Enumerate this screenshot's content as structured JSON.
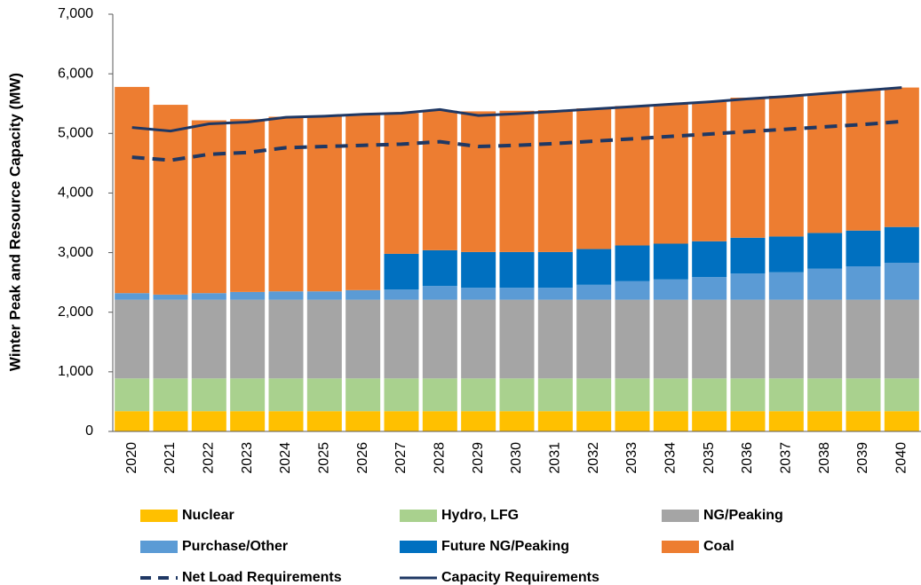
{
  "chart_data": {
    "type": "bar",
    "stacked": true,
    "ylabel": "Winter Peak and Resource Capacity (MW)",
    "categories": [
      "2020",
      "2021",
      "2022",
      "2023",
      "2024",
      "2025",
      "2026",
      "2027",
      "2028",
      "2029",
      "2030",
      "2031",
      "2032",
      "2033",
      "2034",
      "2035",
      "2036",
      "2037",
      "2038",
      "2039",
      "2040"
    ],
    "series": [
      {
        "name": "Nuclear",
        "color": "#ffc000",
        "values": [
          340,
          340,
          340,
          340,
          340,
          340,
          340,
          340,
          340,
          340,
          340,
          340,
          340,
          340,
          340,
          340,
          340,
          340,
          340,
          340,
          340
        ]
      },
      {
        "name": "Hydro, LFG",
        "color": "#a9d18e",
        "values": [
          550,
          550,
          550,
          550,
          550,
          550,
          550,
          550,
          550,
          550,
          550,
          550,
          550,
          550,
          550,
          550,
          550,
          550,
          550,
          550,
          550
        ]
      },
      {
        "name": "NG/Peaking",
        "color": "#a5a5a5",
        "values": [
          1320,
          1320,
          1320,
          1320,
          1320,
          1320,
          1320,
          1320,
          1320,
          1320,
          1320,
          1320,
          1320,
          1320,
          1320,
          1320,
          1320,
          1320,
          1320,
          1320,
          1320
        ]
      },
      {
        "name": "Purchase/Other",
        "color": "#5b9bd5",
        "values": [
          110,
          85,
          110,
          130,
          140,
          140,
          160,
          170,
          230,
          200,
          200,
          200,
          250,
          310,
          340,
          380,
          440,
          460,
          520,
          560,
          620
        ]
      },
      {
        "name": "Future NG/Peaking",
        "color": "#0070c0",
        "values": [
          0,
          0,
          0,
          0,
          0,
          0,
          0,
          600,
          600,
          600,
          600,
          600,
          600,
          600,
          600,
          600,
          600,
          600,
          600,
          600,
          600
        ]
      },
      {
        "name": "Coal",
        "color": "#ed7d31",
        "values": [
          3460,
          3185,
          2900,
          2900,
          2930,
          2940,
          2950,
          2360,
          2340,
          2360,
          2370,
          2380,
          2360,
          2340,
          2340,
          2340,
          2350,
          2360,
          2340,
          2350,
          2340
        ]
      }
    ],
    "lines": [
      {
        "name": "Net Load Requirements",
        "color": "#1f3864",
        "dashed": true,
        "values": [
          4600,
          4550,
          4650,
          4680,
          4760,
          4780,
          4800,
          4820,
          4860,
          4780,
          4800,
          4830,
          4870,
          4910,
          4950,
          4990,
          5030,
          5070,
          5110,
          5150,
          5200
        ]
      },
      {
        "name": "Capacity Requirements",
        "color": "#1f3864",
        "dashed": false,
        "values": [
          5100,
          5040,
          5160,
          5190,
          5270,
          5290,
          5320,
          5340,
          5400,
          5300,
          5330,
          5370,
          5410,
          5450,
          5490,
          5530,
          5580,
          5620,
          5670,
          5720,
          5770
        ]
      }
    ],
    "ylim": [
      0,
      7000
    ],
    "yticks": [
      0,
      {
        "value": 1000,
        "label": "1,000"
      },
      {
        "value": 2000,
        "label": "2,000"
      },
      {
        "value": 3000,
        "label": "3,000"
      },
      {
        "value": 4000,
        "label": "4,000"
      },
      {
        "value": 5000,
        "label": "5,000"
      },
      {
        "value": 6000,
        "label": "6,000"
      },
      {
        "value": 7000,
        "label": "7,000"
      }
    ],
    "grid": false
  }
}
